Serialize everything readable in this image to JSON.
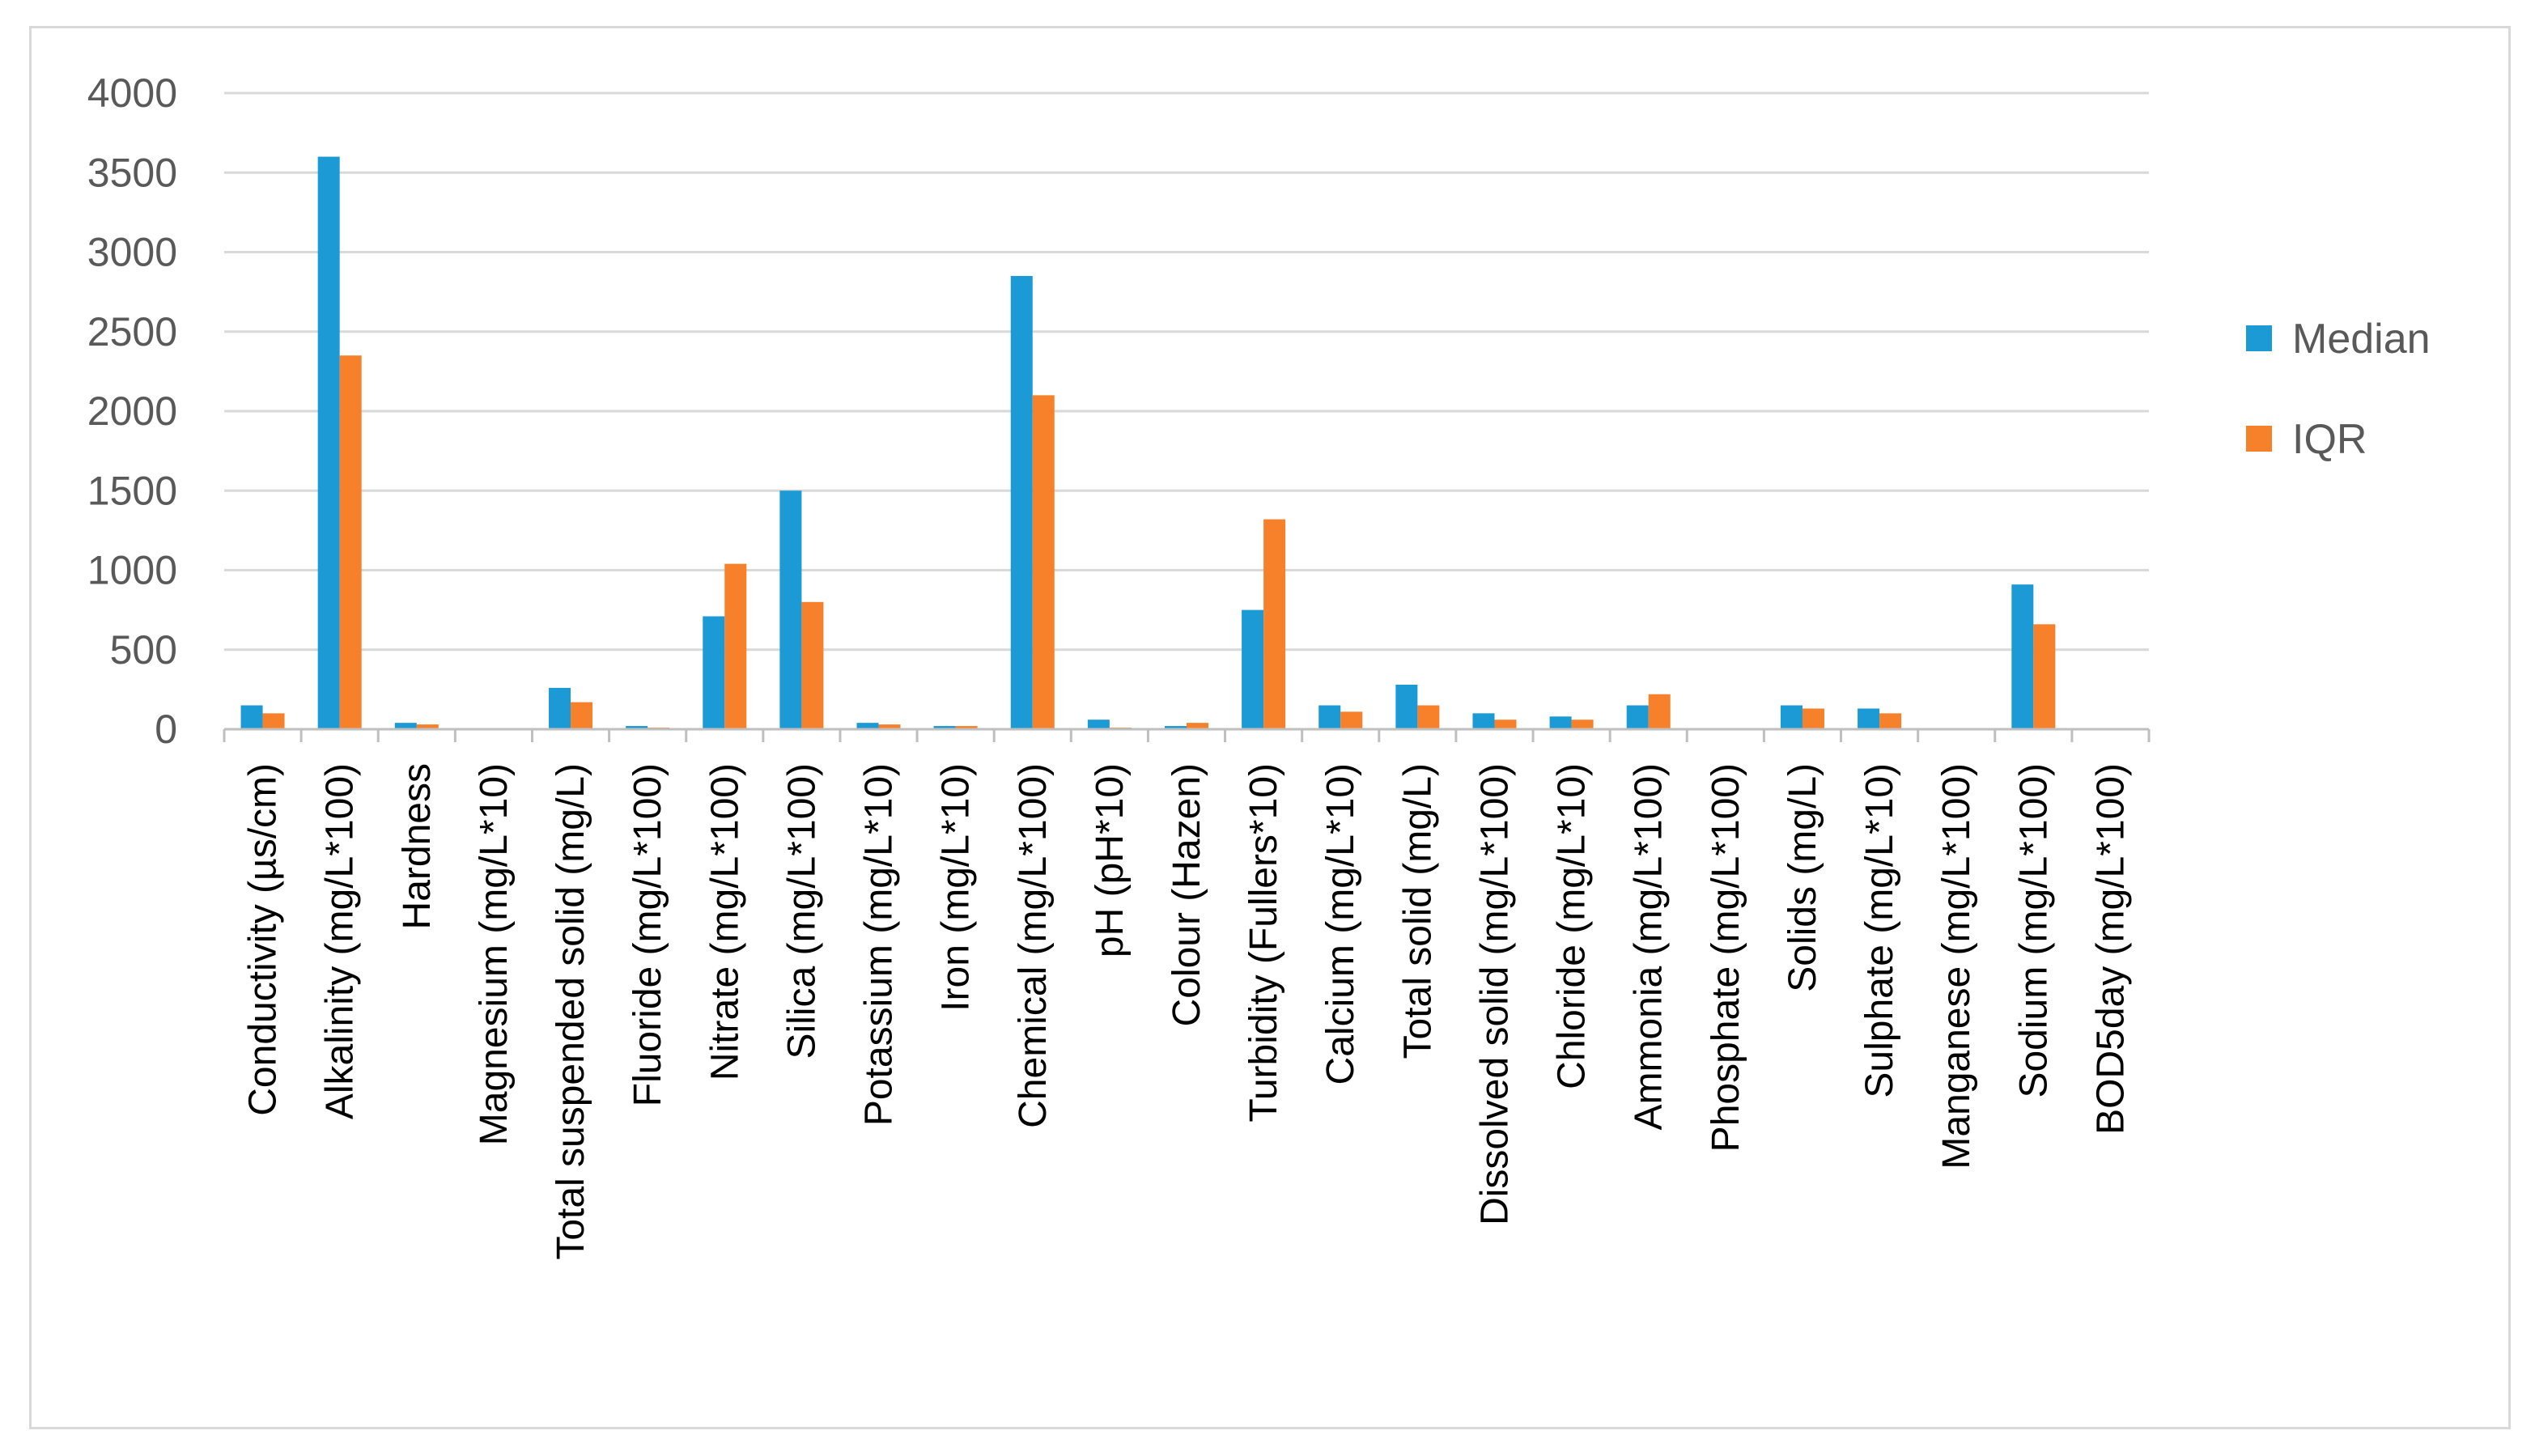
{
  "colors": {
    "median": "#1b9ad6",
    "iqr": "#f7812a",
    "grid": "#d9d9d9",
    "axis": "#bfbfbf"
  },
  "chart_data": {
    "type": "bar",
    "title": "",
    "xlabel": "",
    "ylabel": "",
    "ylim": [
      0,
      4000
    ],
    "yticks": [
      0,
      500,
      1000,
      1500,
      2000,
      2500,
      3000,
      3500,
      4000
    ],
    "grid": true,
    "legend_position": "right",
    "categories": [
      "Conductivity (µs/cm)",
      "Alkalinity (mg/L*100)",
      "Hardness",
      "Magnesium (mg/L*10)",
      "Total suspended solid (mg/L)",
      "Fluoride (mg/L*100)",
      "Nitrate (mg/L*100)",
      "Silica (mg/L*100)",
      "Potassium (mg/L*10)",
      "Iron (mg/L*10)",
      "Chemical (mg/L*100)",
      "pH (pH*10)",
      "Colour (Hazen)",
      "Turbidity (Fullers*10)",
      "Calcium (mg/L*10)",
      "Total solid (mg/L)",
      "Dissolved solid (mg/L*100)",
      "Chloride (mg/L*10)",
      "Ammonia (mg/L*100)",
      "Phosphate (mg/L*100)",
      "Solids (mg/L)",
      "Sulphate (mg/L*10)",
      "Manganese (mg/L*100)",
      "Sodium (mg/L*100)",
      "BOD5day (mg/L*100)"
    ],
    "series": [
      {
        "name": "Median",
        "values": [
          150,
          3600,
          40,
          0,
          260,
          20,
          710,
          1500,
          40,
          20,
          2850,
          60,
          20,
          750,
          150,
          280,
          100,
          80,
          150,
          0,
          150,
          130,
          0,
          910,
          0
        ]
      },
      {
        "name": "IQR",
        "values": [
          100,
          2350,
          30,
          0,
          170,
          10,
          1040,
          800,
          30,
          20,
          2100,
          10,
          40,
          1320,
          110,
          150,
          60,
          60,
          220,
          0,
          130,
          100,
          0,
          660,
          0
        ]
      }
    ]
  }
}
